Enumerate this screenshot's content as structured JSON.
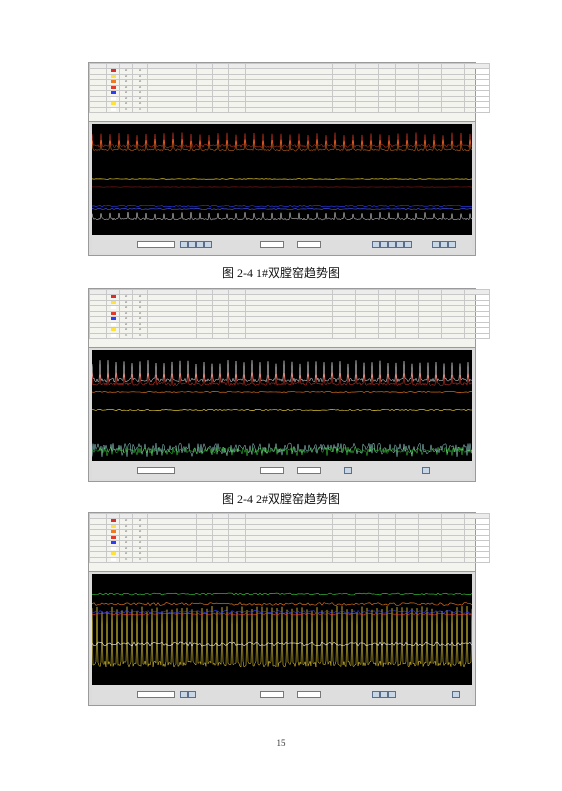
{
  "figures": [
    {
      "caption": "图 2-4 1#双膛窑趋势图"
    },
    {
      "caption": "图 2-4 2#双膛窑趋势图"
    },
    {
      "caption": ""
    }
  ],
  "page_number": "15",
  "colors": {
    "plot_bg": "#000000",
    "series_red": "#e23a2a",
    "series_yellow": "#ffe23a",
    "series_blue": "#2b3cff",
    "series_white": "#eeeeee",
    "series_green": "#3cd23c",
    "series_cyan": "#9fdcdc"
  }
}
